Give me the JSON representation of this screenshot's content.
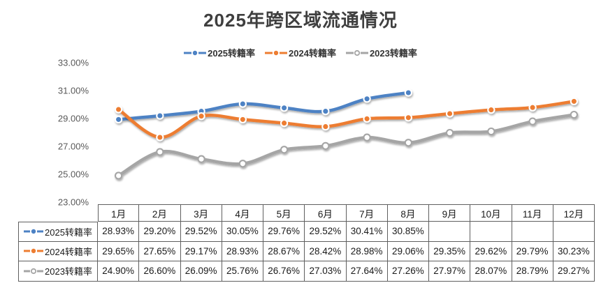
{
  "title": "2025年跨区域流通情况",
  "chart_data": {
    "type": "line",
    "smooth": true,
    "grid": false,
    "legend_position": "top",
    "categories": [
      "1月",
      "2月",
      "3月",
      "4月",
      "5月",
      "6月",
      "7月",
      "8月",
      "9月",
      "10月",
      "11月",
      "12月"
    ],
    "series": [
      {
        "name": "2025转籍率",
        "color": "#4D82C4",
        "marker": "filled",
        "values": [
          28.93,
          29.2,
          29.52,
          30.05,
          29.76,
          29.52,
          30.41,
          30.85,
          null,
          null,
          null,
          null
        ]
      },
      {
        "name": "2024转籍率",
        "color": "#ED7D31",
        "marker": "filled",
        "values": [
          29.65,
          27.65,
          29.17,
          28.93,
          28.67,
          28.42,
          28.98,
          29.06,
          29.35,
          29.62,
          29.79,
          30.23
        ]
      },
      {
        "name": "2023转籍率",
        "color": "#A5A5A5",
        "marker": "open",
        "values": [
          24.9,
          26.6,
          26.09,
          25.76,
          26.76,
          27.03,
          27.64,
          27.26,
          27.97,
          28.07,
          28.79,
          29.27
        ]
      }
    ],
    "ylim": [
      23,
      33
    ],
    "yticks": [
      "33.00%",
      "31.00%",
      "29.00%",
      "27.00%",
      "25.00%",
      "23.00%"
    ],
    "ytick_values": [
      33,
      31,
      29,
      27,
      25,
      23
    ]
  },
  "table": {
    "columns": [
      "1月",
      "2月",
      "3月",
      "4月",
      "5月",
      "6月",
      "7月",
      "8月",
      "9月",
      "10月",
      "11月",
      "12月"
    ],
    "rows": [
      {
        "label": "2025转籍率",
        "cells": [
          "28.93%",
          "29.20%",
          "29.52%",
          "30.05%",
          "29.76%",
          "29.52%",
          "30.41%",
          "30.85%",
          "",
          "",
          "",
          ""
        ]
      },
      {
        "label": "2024转籍率",
        "cells": [
          "29.65%",
          "27.65%",
          "29.17%",
          "28.93%",
          "28.67%",
          "28.42%",
          "28.98%",
          "29.06%",
          "29.35%",
          "29.62%",
          "29.79%",
          "30.23%"
        ]
      },
      {
        "label": "2023转籍率",
        "cells": [
          "24.90%",
          "26.60%",
          "26.09%",
          "25.76%",
          "26.76%",
          "27.03%",
          "27.64%",
          "27.26%",
          "27.97%",
          "28.07%",
          "28.79%",
          "29.27%"
        ]
      }
    ]
  }
}
